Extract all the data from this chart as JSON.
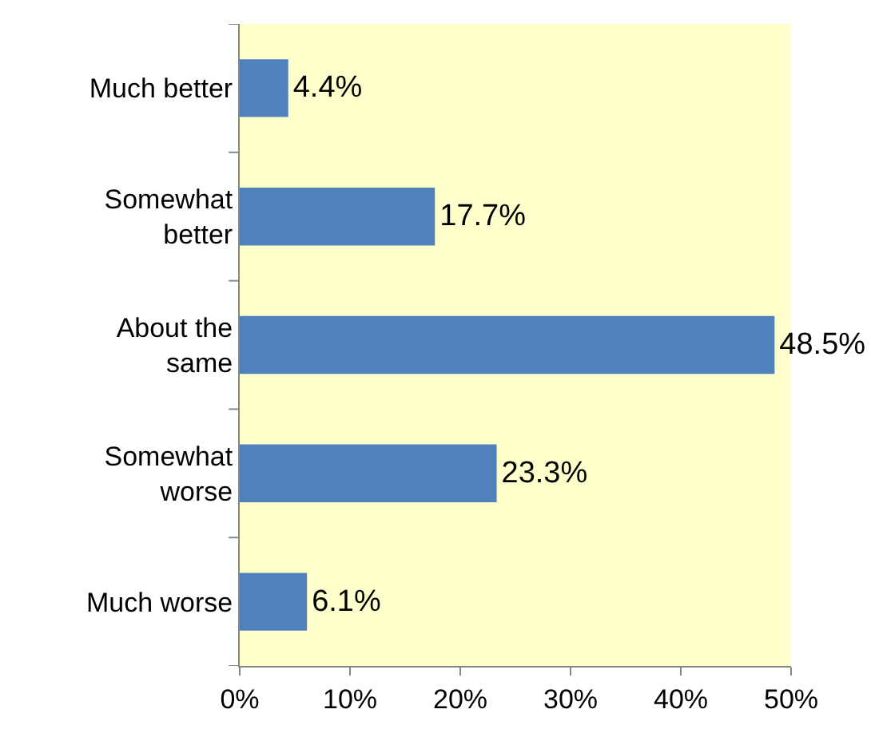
{
  "chart_data": {
    "type": "bar",
    "orientation": "horizontal",
    "categories": [
      "Much better",
      "Somewhat better",
      "About the same",
      "Somewhat worse",
      "Much worse"
    ],
    "values": [
      4.4,
      17.7,
      48.5,
      23.3,
      6.1
    ],
    "value_labels": [
      "4.4%",
      "17.7%",
      "48.5%",
      "23.3%",
      "6.1%"
    ],
    "color": "#4f81bd",
    "xlim": [
      0,
      50
    ],
    "xticks": [
      {
        "value": 0,
        "label": "0%"
      },
      {
        "value": 10,
        "label": "10%"
      },
      {
        "value": 20,
        "label": "20%"
      },
      {
        "value": 30,
        "label": "30%"
      },
      {
        "value": 40,
        "label": "40%"
      },
      {
        "value": 50,
        "label": "50%"
      }
    ],
    "grid": false,
    "legend": false
  }
}
